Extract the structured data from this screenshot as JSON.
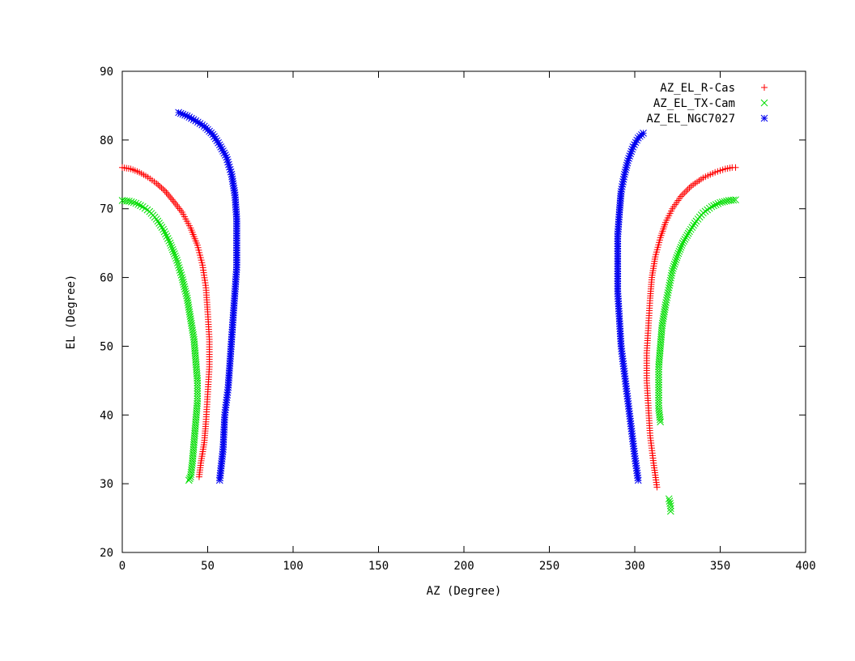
{
  "chart_data": {
    "type": "scatter",
    "title": "",
    "xlabel": "AZ (Degree)",
    "ylabel": "EL (Degree)",
    "xlim": [
      0,
      400
    ],
    "ylim": [
      20,
      90
    ],
    "xticks": [
      "0",
      "50",
      "100",
      "150",
      "200",
      "250",
      "300",
      "350",
      "400"
    ],
    "yticks": [
      "20",
      "30",
      "40",
      "50",
      "60",
      "70",
      "80",
      "90"
    ],
    "grid": false,
    "legend_position": "top-right",
    "series": [
      {
        "name": "AZ_EL_R-Cas",
        "marker": "plus",
        "color": "#ff0000",
        "x": [
          0,
          5,
          10,
          15,
          20,
          25,
          30,
          35,
          40,
          44,
          47,
          49,
          50,
          51,
          51,
          50,
          49,
          48,
          46,
          45
        ],
        "y": [
          76,
          75.8,
          75.3,
          74.6,
          73.7,
          72.6,
          71.1,
          69.5,
          67.2,
          64.7,
          61.8,
          58.5,
          55,
          51,
          47,
          43,
          39,
          36,
          33,
          31
        ],
        "x2": [
          313,
          311,
          309,
          308,
          307,
          307,
          308,
          309,
          310,
          312,
          315,
          318,
          322,
          327,
          333,
          340,
          347,
          353,
          357,
          359
        ],
        "y2": [
          29.5,
          33,
          37,
          41,
          45,
          49,
          53,
          57,
          60,
          63,
          65.8,
          68,
          70,
          71.8,
          73.3,
          74.5,
          75.3,
          75.8,
          76,
          76
        ]
      },
      {
        "name": "AZ_EL_TX-Cam",
        "marker": "cross",
        "color": "#00dd00",
        "x": [
          0,
          4,
          8,
          12,
          16,
          20,
          24,
          28,
          32,
          35,
          38,
          40,
          42,
          43,
          44,
          44,
          43,
          42,
          41,
          40,
          39
        ],
        "y": [
          71.2,
          71.1,
          70.8,
          70.3,
          69.6,
          68.5,
          67,
          65,
          62.5,
          60,
          57,
          54,
          51,
          48,
          45,
          42,
          39,
          36,
          33,
          31,
          30.5
        ],
        "x2": [
          315,
          314,
          314,
          314,
          315,
          316,
          318,
          320,
          322,
          325,
          328,
          332,
          336,
          340,
          345,
          350,
          355,
          359
        ],
        "y2": [
          39,
          41,
          44,
          47,
          50,
          53,
          56,
          58.5,
          61,
          63.2,
          65,
          66.7,
          68.2,
          69.4,
          70.3,
          70.9,
          71.2,
          71.3
        ],
        "x3": [
          320,
          321,
          321
        ],
        "y3": [
          27.8,
          26.8,
          26
        ]
      },
      {
        "name": "AZ_EL_NGC7027",
        "marker": "star",
        "color": "#0000ee",
        "x": [
          33,
          38,
          43,
          48,
          53,
          57,
          61,
          64,
          66,
          67,
          67,
          67,
          66,
          65,
          64,
          63,
          62,
          60,
          59,
          57
        ],
        "y": [
          84,
          83.5,
          82.8,
          82,
          80.8,
          79.3,
          77.5,
          75,
          72,
          68.5,
          65,
          61.5,
          58,
          54.5,
          51,
          47.5,
          44,
          40,
          35,
          30.5
        ],
        "x2": [
          302,
          300,
          298,
          296,
          294,
          292,
          291,
          290,
          290,
          290,
          291,
          292,
          294,
          296,
          299,
          302,
          305
        ],
        "y2": [
          30.5,
          34,
          38,
          42,
          46,
          50,
          54,
          58,
          62,
          66,
          69.5,
          72.5,
          75,
          77,
          79,
          80.3,
          81
        ]
      }
    ]
  }
}
